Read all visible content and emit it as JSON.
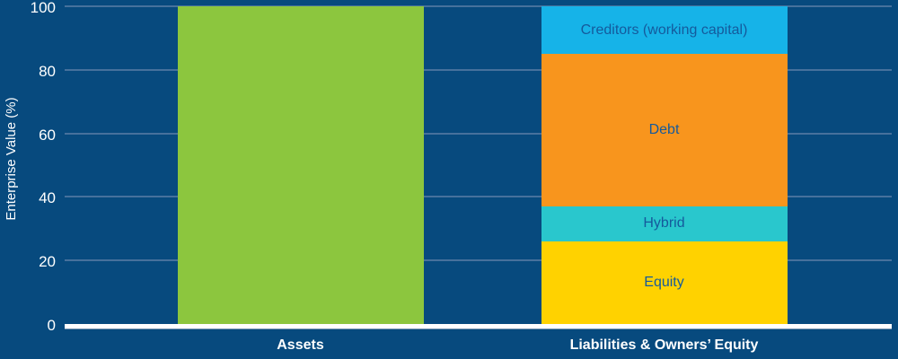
{
  "chart_data": {
    "type": "bar",
    "subtype": "stacked-vertical",
    "title": "",
    "xlabel": "",
    "ylabel": "Enterprise Value (%)",
    "ylim": [
      0,
      100
    ],
    "yticks": [
      0,
      20,
      40,
      60,
      80,
      100
    ],
    "grid": "horizontal",
    "legend": "none (segments labeled inline)",
    "categories": [
      "Assets",
      "Liabilities & Owners’ Equity"
    ],
    "bars": [
      {
        "category": "Assets",
        "segments": [
          {
            "label": "",
            "value": 100,
            "color": "#8cc63e"
          }
        ]
      },
      {
        "category": "Liabilities & Owners’ Equity",
        "segments": [
          {
            "label": "Equity",
            "value": 26,
            "color": "#ffd200"
          },
          {
            "label": "Hybrid",
            "value": 11,
            "color": "#29c7cd"
          },
          {
            "label": "Debt",
            "value": 48,
            "color": "#f8951d"
          },
          {
            "label": "Creditors (working capital)",
            "value": 15,
            "color": "#16b3e8"
          }
        ]
      }
    ],
    "colors": {
      "background": "#074a7e",
      "gridline": "#46719c",
      "axis_line": "#ffffff",
      "tick_label_text": "#ffffff",
      "axis_title_text": "#ffffff",
      "segment_label_text": "#155a9c",
      "category_label_text": "#ffffff"
    }
  }
}
